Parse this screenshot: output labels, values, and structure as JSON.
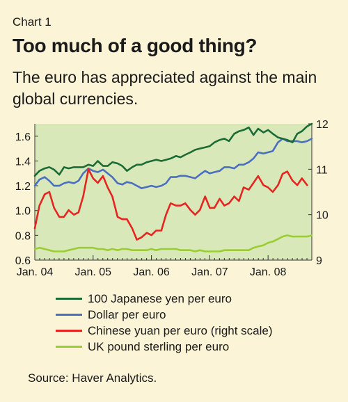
{
  "header": {
    "chart_label": "Chart 1",
    "title": "Too much of a good thing?",
    "subtitle": "The euro has appreciated against the main global currencies."
  },
  "source": "Source: Haver Analytics.",
  "colors": {
    "plot_background": "#d9e8b8",
    "page_background": "#fbf4d6",
    "yen": "#1a6b35",
    "dollar": "#4a6fc0",
    "yuan": "#e52521",
    "pound": "#9acd32"
  },
  "chart_data": {
    "type": "line",
    "x_tick_labels": [
      "Jan. 04",
      "Jan. 05",
      "Jan. 06",
      "Jan. 07",
      "Jan. 08"
    ],
    "x_range": [
      2004.0,
      2008.75
    ],
    "y_left": {
      "range": [
        0.6,
        1.7
      ],
      "ticks": [
        "0.6",
        "0.8",
        "1.0",
        "1.2",
        "1.4",
        "1.6"
      ]
    },
    "y_right": {
      "range": [
        9,
        12
      ],
      "ticks": [
        "9",
        "10",
        "11",
        "12"
      ]
    },
    "grid": false,
    "legend_position": "bottom",
    "series": [
      {
        "name": "100 Japanese yen per euro",
        "axis": "left",
        "color_key": "yen",
        "x": [
          2004.0,
          2004.08,
          2004.17,
          2004.25,
          2004.33,
          2004.42,
          2004.5,
          2004.58,
          2004.67,
          2004.75,
          2004.83,
          2004.92,
          2005.0,
          2005.08,
          2005.17,
          2005.25,
          2005.33,
          2005.42,
          2005.5,
          2005.58,
          2005.67,
          2005.75,
          2005.83,
          2005.92,
          2006.0,
          2006.08,
          2006.17,
          2006.25,
          2006.33,
          2006.42,
          2006.5,
          2006.58,
          2006.67,
          2006.75,
          2006.83,
          2006.92,
          2007.0,
          2007.08,
          2007.17,
          2007.25,
          2007.33,
          2007.42,
          2007.5,
          2007.58,
          2007.67,
          2007.75,
          2007.83,
          2007.92,
          2008.0,
          2008.08,
          2008.17,
          2008.25,
          2008.33,
          2008.42,
          2008.5,
          2008.58,
          2008.67,
          2008.75
        ],
        "values": [
          1.28,
          1.32,
          1.34,
          1.35,
          1.33,
          1.29,
          1.35,
          1.34,
          1.35,
          1.35,
          1.35,
          1.37,
          1.36,
          1.4,
          1.36,
          1.36,
          1.39,
          1.38,
          1.36,
          1.32,
          1.35,
          1.37,
          1.37,
          1.39,
          1.4,
          1.41,
          1.4,
          1.41,
          1.42,
          1.44,
          1.43,
          1.45,
          1.47,
          1.49,
          1.5,
          1.51,
          1.52,
          1.55,
          1.57,
          1.58,
          1.56,
          1.62,
          1.64,
          1.65,
          1.67,
          1.61,
          1.66,
          1.63,
          1.65,
          1.62,
          1.59,
          1.58,
          1.57,
          1.55,
          1.62,
          1.64,
          1.68,
          1.7
        ]
      },
      {
        "name": "Dollar per euro",
        "axis": "left",
        "color_key": "dollar",
        "x": [
          2004.0,
          2004.08,
          2004.17,
          2004.25,
          2004.33,
          2004.42,
          2004.5,
          2004.58,
          2004.67,
          2004.75,
          2004.83,
          2004.92,
          2005.0,
          2005.08,
          2005.17,
          2005.25,
          2005.33,
          2005.42,
          2005.5,
          2005.58,
          2005.67,
          2005.75,
          2005.83,
          2005.92,
          2006.0,
          2006.08,
          2006.17,
          2006.25,
          2006.33,
          2006.42,
          2006.5,
          2006.58,
          2006.67,
          2006.75,
          2006.83,
          2006.92,
          2007.0,
          2007.08,
          2007.17,
          2007.25,
          2007.33,
          2007.42,
          2007.5,
          2007.58,
          2007.67,
          2007.75,
          2007.83,
          2007.92,
          2008.0,
          2008.08,
          2008.17,
          2008.25,
          2008.33,
          2008.42,
          2008.5,
          2008.58,
          2008.67,
          2008.75
        ],
        "values": [
          1.2,
          1.25,
          1.27,
          1.24,
          1.2,
          1.2,
          1.22,
          1.23,
          1.22,
          1.24,
          1.3,
          1.34,
          1.32,
          1.31,
          1.33,
          1.3,
          1.27,
          1.22,
          1.21,
          1.23,
          1.22,
          1.2,
          1.18,
          1.19,
          1.2,
          1.19,
          1.2,
          1.22,
          1.27,
          1.27,
          1.28,
          1.28,
          1.27,
          1.26,
          1.29,
          1.32,
          1.3,
          1.31,
          1.32,
          1.35,
          1.35,
          1.34,
          1.37,
          1.37,
          1.39,
          1.42,
          1.47,
          1.46,
          1.47,
          1.48,
          1.55,
          1.58,
          1.56,
          1.56,
          1.56,
          1.55,
          1.56,
          1.58
        ]
      },
      {
        "name": "Chinese yuan per euro (right scale)",
        "axis": "right",
        "color_key": "yuan",
        "x": [
          2004.0,
          2004.08,
          2004.17,
          2004.25,
          2004.33,
          2004.42,
          2004.5,
          2004.58,
          2004.67,
          2004.75,
          2004.83,
          2004.92,
          2005.0,
          2005.08,
          2005.17,
          2005.25,
          2005.33,
          2005.42,
          2005.5,
          2005.58,
          2005.67,
          2005.75,
          2005.83,
          2005.92,
          2006.0,
          2006.08,
          2006.17,
          2006.25,
          2006.33,
          2006.42,
          2006.5,
          2006.58,
          2006.67,
          2006.75,
          2006.83,
          2006.92,
          2007.0,
          2007.08,
          2007.17,
          2007.25,
          2007.33,
          2007.42,
          2007.5,
          2007.58,
          2007.67,
          2007.75,
          2007.83,
          2007.92,
          2008.0,
          2008.08,
          2008.17,
          2008.25,
          2008.33,
          2008.42,
          2008.5,
          2008.58,
          2008.67
        ],
        "values": [
          9.7,
          10.2,
          10.45,
          10.5,
          10.15,
          9.95,
          9.95,
          10.1,
          10.0,
          10.05,
          10.4,
          11.0,
          10.8,
          10.7,
          10.85,
          10.6,
          10.4,
          9.95,
          9.9,
          9.9,
          9.7,
          9.45,
          9.5,
          9.6,
          9.55,
          9.65,
          9.65,
          10.0,
          10.25,
          10.2,
          10.2,
          10.25,
          10.1,
          10.0,
          10.1,
          10.4,
          10.15,
          10.15,
          10.35,
          10.2,
          10.25,
          10.4,
          10.3,
          10.6,
          10.55,
          10.7,
          10.85,
          10.65,
          10.6,
          10.5,
          10.65,
          10.9,
          10.95,
          10.75,
          10.65,
          10.8,
          10.65
        ]
      },
      {
        "name": "UK pound sterling per euro",
        "axis": "left",
        "color_key": "pound",
        "x": [
          2004.0,
          2004.08,
          2004.17,
          2004.25,
          2004.33,
          2004.42,
          2004.5,
          2004.58,
          2004.67,
          2004.75,
          2004.83,
          2004.92,
          2005.0,
          2005.08,
          2005.17,
          2005.25,
          2005.33,
          2005.42,
          2005.5,
          2005.58,
          2005.67,
          2005.75,
          2005.83,
          2005.92,
          2006.0,
          2006.08,
          2006.17,
          2006.25,
          2006.33,
          2006.42,
          2006.5,
          2006.58,
          2006.67,
          2006.75,
          2006.83,
          2006.92,
          2007.0,
          2007.08,
          2007.17,
          2007.25,
          2007.33,
          2007.42,
          2007.5,
          2007.58,
          2007.67,
          2007.75,
          2007.83,
          2007.92,
          2008.0,
          2008.08,
          2008.17,
          2008.25,
          2008.33,
          2008.42,
          2008.5,
          2008.58,
          2008.67,
          2008.75
        ],
        "values": [
          0.69,
          0.7,
          0.69,
          0.68,
          0.67,
          0.67,
          0.67,
          0.68,
          0.69,
          0.7,
          0.7,
          0.7,
          0.7,
          0.69,
          0.69,
          0.68,
          0.69,
          0.68,
          0.69,
          0.69,
          0.68,
          0.68,
          0.68,
          0.68,
          0.69,
          0.68,
          0.69,
          0.69,
          0.69,
          0.69,
          0.68,
          0.68,
          0.68,
          0.67,
          0.68,
          0.67,
          0.67,
          0.67,
          0.67,
          0.68,
          0.68,
          0.68,
          0.68,
          0.68,
          0.68,
          0.7,
          0.71,
          0.72,
          0.74,
          0.75,
          0.77,
          0.79,
          0.8,
          0.79,
          0.79,
          0.79,
          0.79,
          0.8
        ]
      }
    ]
  }
}
